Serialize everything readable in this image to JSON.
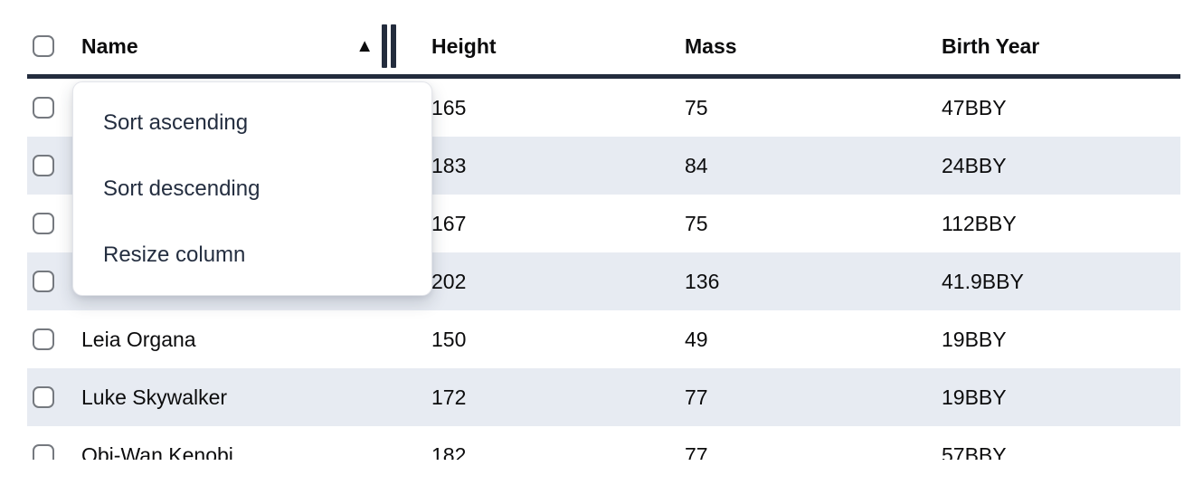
{
  "table": {
    "columns": [
      {
        "label": "Name"
      },
      {
        "label": "Height"
      },
      {
        "label": "Mass"
      },
      {
        "label": "Birth Year"
      }
    ],
    "sort": {
      "column": "Name",
      "direction": "ascending",
      "icon": "▲"
    },
    "rows": [
      {
        "name": "",
        "height": "165",
        "mass": "75",
        "birth_year": "47BBY"
      },
      {
        "name": "",
        "height": "183",
        "mass": "84",
        "birth_year": "24BBY"
      },
      {
        "name": "",
        "height": "167",
        "mass": "75",
        "birth_year": "112BBY"
      },
      {
        "name": "",
        "height": "202",
        "mass": "136",
        "birth_year": "41.9BBY"
      },
      {
        "name": "Leia Organa",
        "height": "150",
        "mass": "49",
        "birth_year": "19BBY"
      },
      {
        "name": "Luke Skywalker",
        "height": "172",
        "mass": "77",
        "birth_year": "19BBY"
      },
      {
        "name": "Obi-Wan Kenobi",
        "height": "182",
        "mass": "77",
        "birth_year": "57BBY"
      }
    ]
  },
  "menu": {
    "items": [
      {
        "label": "Sort ascending"
      },
      {
        "label": "Sort descending"
      },
      {
        "label": "Resize column"
      }
    ]
  },
  "colors": {
    "header_border": "#232c3d",
    "row_stripe": "#e7ebf2",
    "row_text": "#0c0c0d",
    "menu_text": "#242e40",
    "checkbox_border": "#75797f",
    "menu_border": "#e3e5ea"
  }
}
